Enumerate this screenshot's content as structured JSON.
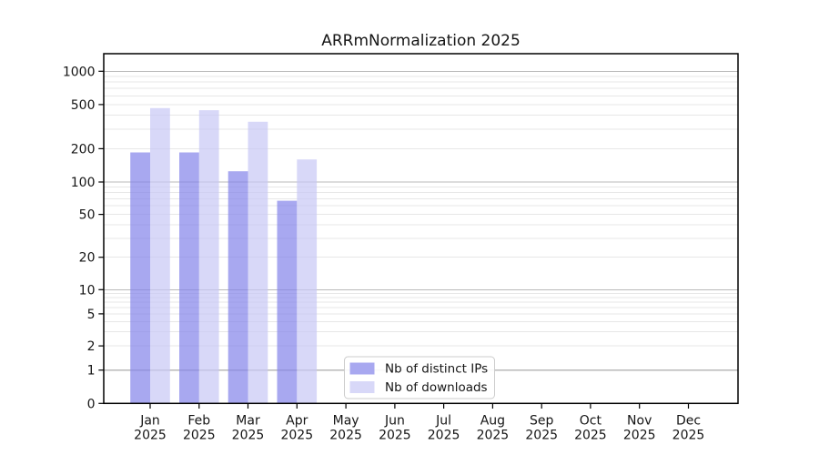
{
  "chart_data": {
    "type": "bar",
    "title": "ARRmNormalization 2025",
    "categories": [
      "Jan",
      "Feb",
      "Mar",
      "Apr",
      "May",
      "Jun",
      "Jul",
      "Aug",
      "Sep",
      "Oct",
      "Nov",
      "Dec"
    ],
    "year_label": "2025",
    "series": [
      {
        "name": "Nb of distinct IPs",
        "legend_color": "#a8a8f0",
        "fill": "rgba(131,131,234,0.7)",
        "values": [
          185,
          185,
          125,
          67,
          0,
          0,
          0,
          0,
          0,
          0,
          0,
          0
        ]
      },
      {
        "name": "Nb of downloads",
        "legend_color": "#d8d8f8",
        "fill": "rgba(199,199,245,0.7)",
        "values": [
          465,
          445,
          350,
          160,
          0,
          0,
          0,
          0,
          0,
          0,
          0,
          0
        ]
      }
    ],
    "yscale": "symlog",
    "yticks": [
      0,
      1,
      2,
      5,
      10,
      20,
      50,
      100,
      200,
      500,
      1000
    ],
    "ylim": [
      0,
      1450
    ],
    "xlabel": "",
    "ylabel": "",
    "grid": {
      "major_color": "#b9b9b9",
      "minor_color": "#e7e7e7"
    },
    "axis_color": "#000000",
    "text_color": "#151515",
    "legend": {
      "position": "lower-center",
      "border_color": "#cccccc",
      "background": "#ffffff"
    }
  }
}
